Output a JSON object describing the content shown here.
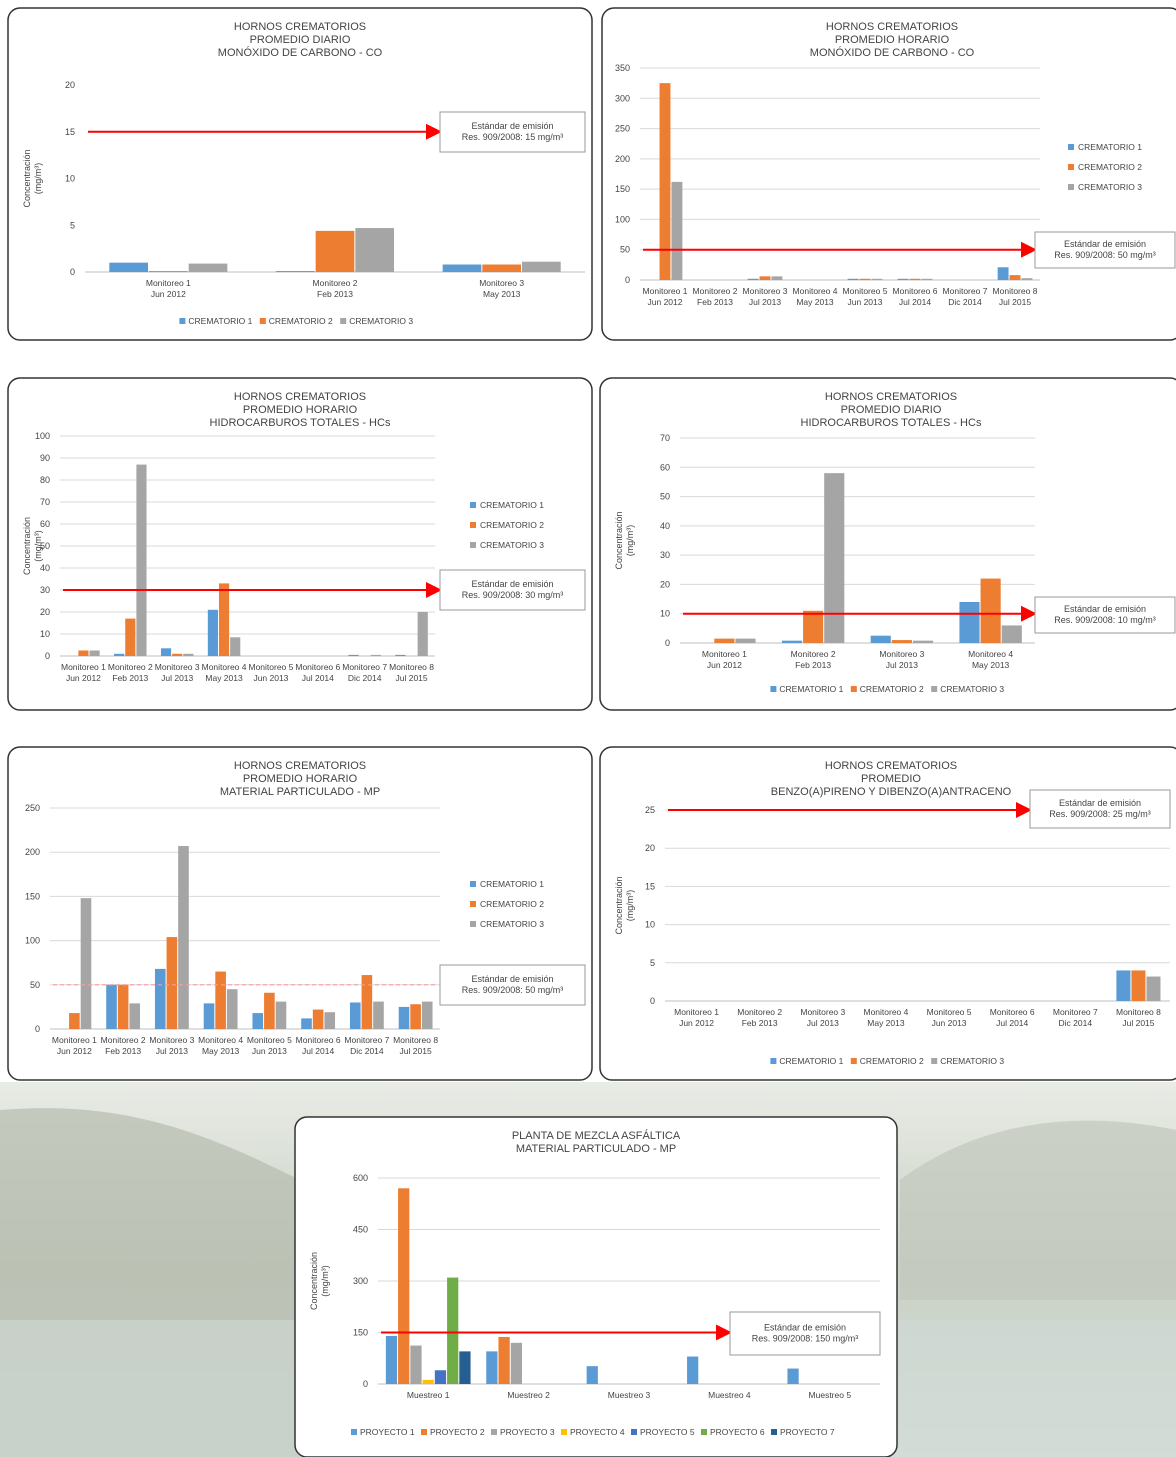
{
  "chart_data": [
    {
      "type": "bar",
      "title": [
        "HORNOS CREMATORIOS",
        "PROMEDIO DIARIO",
        "MONÓXIDO DE CARBONO - CO"
      ],
      "y_label": [
        "Concentración",
        "(mg/m³)"
      ],
      "categories": [
        [
          "Monitoreo 1",
          "Jun 2012"
        ],
        [
          "Monitoreo 2",
          "Feb 2013"
        ],
        [
          "Monitoreo 3",
          "May 2013"
        ]
      ],
      "series": [
        {
          "name": "CREMATORIO 1",
          "color": "#5b9bd5",
          "values": [
            1,
            0.1,
            0.8
          ]
        },
        {
          "name": "CREMATORIO 2",
          "color": "#ed7d31",
          "values": [
            0.1,
            4.4,
            0.8
          ]
        },
        {
          "name": "CREMATORIO 3",
          "color": "#a5a5a5",
          "values": [
            0.9,
            4.7,
            1.1
          ]
        }
      ],
      "ylim": [
        0,
        20
      ],
      "yticks": [
        0,
        5,
        10,
        15,
        20
      ],
      "grid": false,
      "legend": "bottom",
      "reference_line": {
        "value": 15,
        "color": "#ff0000",
        "label": [
          "Estándar de emisión",
          "Res. 909/2008: 15 mg/m³"
        ]
      }
    },
    {
      "type": "bar",
      "title": [
        "HORNOS CREMATORIOS",
        "PROMEDIO HORARIO",
        "MONÓXIDO DE CARBONO - CO"
      ],
      "categories": [
        [
          "Monitoreo 1",
          "Jun 2012"
        ],
        [
          "Monitoreo 2",
          "Feb 2013"
        ],
        [
          "Monitoreo 3",
          "Jul 2013"
        ],
        [
          "Monitoreo 4",
          "May 2013"
        ],
        [
          "Monitoreo 5",
          "Jun 2013"
        ],
        [
          "Monitoreo 6",
          "Jul 2014"
        ],
        [
          "Monitoreo 7",
          "Dic 2014"
        ],
        [
          "Monitoreo 8",
          "Jul 2015"
        ]
      ],
      "series": [
        {
          "name": "CREMATORIO 1",
          "color": "#5b9bd5",
          "values": [
            0,
            0,
            2,
            0,
            2,
            2,
            0,
            21
          ]
        },
        {
          "name": "CREMATORIO 2",
          "color": "#ed7d31",
          "values": [
            325,
            0,
            6,
            0,
            2,
            2,
            0,
            8
          ]
        },
        {
          "name": "CREMATORIO 3",
          "color": "#a5a5a5",
          "values": [
            162,
            0,
            6,
            0,
            2,
            2,
            0,
            3
          ]
        }
      ],
      "ylim": [
        0,
        350
      ],
      "yticks": [
        0,
        50,
        100,
        150,
        200,
        250,
        300,
        350
      ],
      "grid": true,
      "legend": "right",
      "reference_line": {
        "value": 50,
        "color": "#ff0000",
        "label": [
          "Estándar de emisión",
          "Res. 909/2008: 50 mg/m³"
        ]
      }
    },
    {
      "type": "bar",
      "title": [
        "HORNOS CREMATORIOS",
        "PROMEDIO HORARIO",
        "HIDROCARBUROS TOTALES - HCs"
      ],
      "y_label": [
        "Concentración",
        "(mg/m³)"
      ],
      "categories": [
        [
          "Monitoreo 1",
          "Jun 2012"
        ],
        [
          "Monitoreo 2",
          "Feb 2013"
        ],
        [
          "Monitoreo 3",
          "Jul 2013"
        ],
        [
          "Monitoreo 4",
          "May 2013"
        ],
        [
          "Monitoreo 5",
          "Jun 2013"
        ],
        [
          "Monitoreo 6",
          "Jul 2014"
        ],
        [
          "Monitoreo 7",
          "Dic 2014"
        ],
        [
          "Monitoreo 8",
          "Jul 2015"
        ]
      ],
      "series": [
        {
          "name": "CREMATORIO 1",
          "color": "#5b9bd5",
          "values": [
            0,
            1,
            3.5,
            21,
            0,
            0,
            0.5,
            0.5
          ]
        },
        {
          "name": "CREMATORIO 2",
          "color": "#ed7d31",
          "values": [
            2.5,
            17,
            1,
            33,
            0,
            0,
            0,
            0
          ]
        },
        {
          "name": "CREMATORIO 3",
          "color": "#a5a5a5",
          "values": [
            2.5,
            87,
            1,
            8.5,
            0,
            0,
            0.5,
            20
          ]
        }
      ],
      "ylim": [
        0,
        100
      ],
      "yticks": [
        0,
        10,
        20,
        30,
        40,
        50,
        60,
        70,
        80,
        90,
        100
      ],
      "grid": true,
      "legend": "right",
      "reference_line": {
        "value": 30,
        "color": "#ff0000",
        "label": [
          "Estándar de emisión",
          "Res. 909/2008: 30 mg/m³"
        ]
      }
    },
    {
      "type": "bar",
      "title": [
        "HORNOS CREMATORIOS",
        "PROMEDIO DIARIO",
        "HIDROCARBUROS TOTALES - HCs"
      ],
      "y_label": [
        "Concentración",
        "(mg/m³)"
      ],
      "categories": [
        [
          "Monitoreo 1",
          "Jun 2012"
        ],
        [
          "Monitoreo 2",
          "Feb 2013"
        ],
        [
          "Monitoreo 3",
          "Jul 2013"
        ],
        [
          "Monitoreo 4",
          "May 2013"
        ]
      ],
      "series": [
        {
          "name": "CREMATORIO 1",
          "color": "#5b9bd5",
          "values": [
            0,
            0.8,
            2.5,
            14
          ]
        },
        {
          "name": "CREMATORIO 2",
          "color": "#ed7d31",
          "values": [
            1.5,
            11,
            1,
            22
          ]
        },
        {
          "name": "CREMATORIO 3",
          "color": "#a5a5a5",
          "values": [
            1.5,
            58,
            0.8,
            6
          ]
        }
      ],
      "ylim": [
        0,
        70
      ],
      "yticks": [
        0,
        10,
        20,
        30,
        40,
        50,
        60,
        70
      ],
      "grid": true,
      "legend": "bottom",
      "reference_line": {
        "value": 10,
        "color": "#ff0000",
        "label": [
          "Estándar de emisión",
          "Res. 909/2008: 10 mg/m³"
        ]
      }
    },
    {
      "type": "bar",
      "title": [
        "HORNOS CREMATORIOS",
        "PROMEDIO HORARIO",
        "MATERIAL PARTICULADO - MP"
      ],
      "categories": [
        [
          "Monitoreo 1",
          "Jun 2012"
        ],
        [
          "Monitoreo 2",
          "Feb 2013"
        ],
        [
          "Monitoreo 3",
          "Jul 2013"
        ],
        [
          "Monitoreo 4",
          "May 2013"
        ],
        [
          "Monitoreo 5",
          "Jun 2013"
        ],
        [
          "Monitoreo 6",
          "Jul 2014"
        ],
        [
          "Monitoreo 7",
          "Dic 2014"
        ],
        [
          "Monitoreo 8",
          "Jul 2015"
        ]
      ],
      "series": [
        {
          "name": "CREMATORIO 1",
          "color": "#5b9bd5",
          "values": [
            0,
            50,
            68,
            29,
            18,
            12,
            30,
            25
          ]
        },
        {
          "name": "CREMATORIO 2",
          "color": "#ed7d31",
          "values": [
            18,
            50,
            104,
            65,
            41,
            22,
            61,
            28
          ]
        },
        {
          "name": "CREMATORIO 3",
          "color": "#a5a5a5",
          "values": [
            148,
            29,
            207,
            45,
            31,
            19,
            31,
            31
          ]
        }
      ],
      "ylim": [
        0,
        250
      ],
      "yticks": [
        0,
        50,
        100,
        150,
        200,
        250
      ],
      "grid": true,
      "legend": "right",
      "reference_line": {
        "value": 50,
        "color": "#ff9999",
        "dashed": true,
        "label": [
          "Estándar de emisión",
          "Res. 909/2008: 50 mg/m³"
        ]
      }
    },
    {
      "type": "bar",
      "title": [
        "HORNOS CREMATORIOS",
        "PROMEDIO",
        "BENZO(A)PIRENO Y DIBENZO(A)ANTRACENO"
      ],
      "y_label": [
        "Concentración",
        "(mg/m³)"
      ],
      "categories": [
        [
          "Monitoreo 1",
          "Jun 2012"
        ],
        [
          "Monitoreo 2",
          "Feb 2013"
        ],
        [
          "Monitoreo 3",
          "Jul 2013"
        ],
        [
          "Monitoreo 4",
          "May 2013"
        ],
        [
          "Monitoreo 5",
          "Jun 2013"
        ],
        [
          "Monitoreo 6",
          "Jul 2014"
        ],
        [
          "Monitoreo 7",
          "Dic 2014"
        ],
        [
          "Monitoreo 8",
          "Jul 2015"
        ]
      ],
      "series": [
        {
          "name": "CREMATORIO 1",
          "color": "#5b9bd5",
          "values": [
            null,
            null,
            null,
            null,
            null,
            null,
            null,
            4
          ]
        },
        {
          "name": "CREMATORIO 2",
          "color": "#ed7d31",
          "values": [
            null,
            null,
            null,
            null,
            null,
            null,
            null,
            4
          ]
        },
        {
          "name": "CREMATORIO 3",
          "color": "#a5a5a5",
          "values": [
            null,
            null,
            null,
            null,
            null,
            null,
            null,
            3.2
          ]
        }
      ],
      "ylim": [
        0,
        25
      ],
      "yticks": [
        0,
        5,
        10,
        15,
        20,
        25
      ],
      "grid": true,
      "legend": "bottom",
      "reference_line": {
        "value": 25,
        "color": "#ff0000",
        "label": [
          "Estándar de emisión",
          "Res. 909/2008: 25 mg/m³"
        ]
      }
    },
    {
      "type": "bar",
      "title": [
        "PLANTA DE MEZCLA ASFÁLTICA",
        "MATERIAL PARTICULADO - MP"
      ],
      "y_label": [
        "Concentración",
        "(mg/m³)"
      ],
      "categories": [
        [
          "Muestreo 1"
        ],
        [
          "Muestreo 2"
        ],
        [
          "Muestreo 3"
        ],
        [
          "Muestreo 4"
        ],
        [
          "Muestreo 5"
        ]
      ],
      "series": [
        {
          "name": "PROYECTO 1",
          "color": "#5b9bd5",
          "values": [
            140,
            95,
            52,
            80,
            45
          ]
        },
        {
          "name": "PROYECTO 2",
          "color": "#ed7d31",
          "values": [
            570,
            137,
            null,
            null,
            null
          ]
        },
        {
          "name": "PROYECTO 3",
          "color": "#a5a5a5",
          "values": [
            112,
            120,
            null,
            null,
            null
          ]
        },
        {
          "name": "PROYECTO 4",
          "color": "#ffc000",
          "values": [
            12,
            null,
            null,
            null,
            null
          ]
        },
        {
          "name": "PROYECTO 5",
          "color": "#4472c4",
          "values": [
            40,
            null,
            null,
            null,
            null
          ]
        },
        {
          "name": "PROYECTO 6",
          "color": "#70ad47",
          "values": [
            310,
            null,
            null,
            null,
            null
          ]
        },
        {
          "name": "PROYECTO 7",
          "color": "#255e91",
          "values": [
            95,
            null,
            null,
            null,
            null
          ]
        }
      ],
      "ylim": [
        0,
        600
      ],
      "yticks": [
        0,
        150,
        300,
        450,
        600
      ],
      "grid": true,
      "legend": "bottom",
      "reference_line": {
        "value": 150,
        "color": "#ff0000",
        "label": [
          "Estándar de emisión",
          "Res. 909/2008: 150 mg/m³"
        ]
      }
    }
  ]
}
